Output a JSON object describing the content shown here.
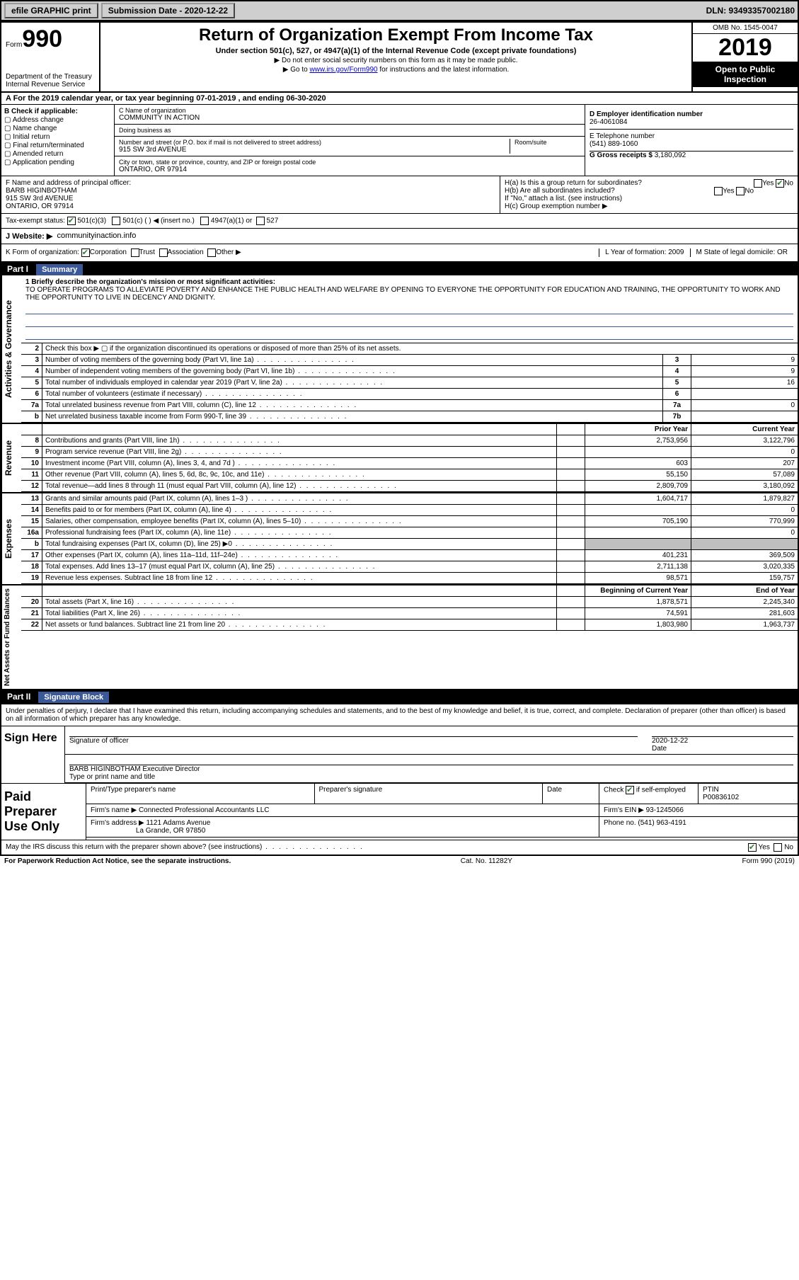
{
  "colors": {
    "link": "#0000cc",
    "check": "#2e7d32",
    "rule": "#3b5998",
    "gray": "#bfbfbf",
    "black": "#000000",
    "white": "#ffffff",
    "topbar": "#cfcfcf"
  },
  "topbar": {
    "efile": "efile GRAPHIC print",
    "submission_label": "Submission Date - 2020-12-22",
    "dln": "DLN: 93493357002180"
  },
  "header": {
    "form_word": "Form",
    "form_no": "990",
    "dept1": "Department of the Treasury",
    "dept2": "Internal Revenue Service",
    "title": "Return of Organization Exempt From Income Tax",
    "sub": "Under section 501(c), 527, or 4947(a)(1) of the Internal Revenue Code (except private foundations)",
    "note1": "▶ Do not enter social security numbers on this form as it may be made public.",
    "note2_pre": "▶ Go to ",
    "note2_link": "www.irs.gov/Form990",
    "note2_post": " for instructions and the latest information.",
    "omb": "OMB No. 1545-0047",
    "year": "2019",
    "inspection": "Open to Public Inspection"
  },
  "period": "A For the 2019 calendar year, or tax year beginning 07-01-2019    , and ending 06-30-2020",
  "boxB": {
    "label": "B Check if applicable:",
    "items": [
      "Address change",
      "Name change",
      "Initial return",
      "Final return/terminated",
      "Amended return",
      "Application pending"
    ]
  },
  "boxC": {
    "name_lbl": "C Name of organization",
    "name": "COMMUNITY IN ACTION",
    "dba_lbl": "Doing business as",
    "dba": "",
    "addr_lbl": "Number and street (or P.O. box if mail is not delivered to street address)",
    "room_lbl": "Room/suite",
    "addr": "915 SW 3rd AVENUE",
    "city_lbl": "City or town, state or province, country, and ZIP or foreign postal code",
    "city": "ONTARIO, OR  97914"
  },
  "boxD": {
    "lbl": "D Employer identification number",
    "val": "26-4061084"
  },
  "boxE": {
    "lbl": "E Telephone number",
    "val": "(541) 889-1060"
  },
  "boxG": {
    "lbl": "G Gross receipts $",
    "val": "3,180,092"
  },
  "boxF": {
    "lbl": "F  Name and address of principal officer:",
    "name": "BARB HIGINBOTHAM",
    "addr1": "915 SW 3rd AVENUE",
    "addr2": "ONTARIO, OR  97914"
  },
  "boxH": {
    "ha": "H(a)  Is this a group return for subordinates?",
    "ha_yes": "Yes",
    "ha_no": "No",
    "hb": "H(b)  Are all subordinates included?",
    "hb_yes": "Yes",
    "hb_no": "No",
    "hb_note": "If \"No,\" attach a list. (see instructions)",
    "hc": "H(c)  Group exemption number ▶"
  },
  "taxStatus": {
    "lbl": "Tax-exempt status:",
    "o1": "501(c)(3)",
    "o2": "501(c) (  ) ◀ (insert no.)",
    "o3": "4947(a)(1) or",
    "o4": "527"
  },
  "website": {
    "lbl": "J   Website: ▶",
    "val": "communityinaction.info"
  },
  "korg": {
    "k": "K Form of organization:",
    "corp": "Corporation",
    "trust": "Trust",
    "assoc": "Association",
    "other": "Other ▶",
    "l_lbl": "L Year of formation:",
    "l_val": "2009",
    "m_lbl": "M State of legal domicile:",
    "m_val": "OR"
  },
  "part1": {
    "label": "Part I",
    "title": "Summary"
  },
  "mission": {
    "q": "1   Briefly describe the organization's mission or most significant activities:",
    "text": "TO OPERATE PROGRAMS TO ALLEVIATE POVERTY AND ENHANCE THE PUBLIC HEALTH AND WELFARE BY OPENING TO EVERYONE THE OPPORTUNITY FOR EDUCATION AND TRAINING, THE OPPORTUNITY TO WORK AND THE OPPORTUNITY TO LIVE IN DECENCY AND DIGNITY."
  },
  "gov": {
    "section": "Activities & Governance",
    "l2": "Check this box ▶ ▢ if the organization discontinued its operations or disposed of more than 25% of its net assets.",
    "rows": [
      {
        "n": "3",
        "t": "Number of voting members of the governing body (Part VI, line 1a)",
        "b": "3",
        "v": "9"
      },
      {
        "n": "4",
        "t": "Number of independent voting members of the governing body (Part VI, line 1b)",
        "b": "4",
        "v": "9"
      },
      {
        "n": "5",
        "t": "Total number of individuals employed in calendar year 2019 (Part V, line 2a)",
        "b": "5",
        "v": "16"
      },
      {
        "n": "6",
        "t": "Total number of volunteers (estimate if necessary)",
        "b": "6",
        "v": ""
      },
      {
        "n": "7a",
        "t": "Total unrelated business revenue from Part VIII, column (C), line 12",
        "b": "7a",
        "v": "0"
      },
      {
        "n": "b",
        "t": "Net unrelated business taxable income from Form 990-T, line 39",
        "b": "7b",
        "v": ""
      }
    ]
  },
  "cols": {
    "py": "Prior Year",
    "cy": "Current Year"
  },
  "rev": {
    "section": "Revenue",
    "rows": [
      {
        "n": "8",
        "t": "Contributions and grants (Part VIII, line 1h)",
        "py": "2,753,956",
        "cy": "3,122,796"
      },
      {
        "n": "9",
        "t": "Program service revenue (Part VIII, line 2g)",
        "py": "",
        "cy": "0"
      },
      {
        "n": "10",
        "t": "Investment income (Part VIII, column (A), lines 3, 4, and 7d )",
        "py": "603",
        "cy": "207"
      },
      {
        "n": "11",
        "t": "Other revenue (Part VIII, column (A), lines 5, 6d, 8c, 9c, 10c, and 11e)",
        "py": "55,150",
        "cy": "57,089"
      },
      {
        "n": "12",
        "t": "Total revenue—add lines 8 through 11 (must equal Part VIII, column (A), line 12)",
        "py": "2,809,709",
        "cy": "3,180,092"
      }
    ]
  },
  "exp": {
    "section": "Expenses",
    "rows": [
      {
        "n": "13",
        "t": "Grants and similar amounts paid (Part IX, column (A), lines 1–3 )",
        "py": "1,604,717",
        "cy": "1,879,827"
      },
      {
        "n": "14",
        "t": "Benefits paid to or for members (Part IX, column (A), line 4)",
        "py": "",
        "cy": "0"
      },
      {
        "n": "15",
        "t": "Salaries, other compensation, employee benefits (Part IX, column (A), lines 5–10)",
        "py": "705,190",
        "cy": "770,999"
      },
      {
        "n": "16a",
        "t": "Professional fundraising fees (Part IX, column (A), line 11e)",
        "py": "",
        "cy": "0"
      },
      {
        "n": "b",
        "t": "Total fundraising expenses (Part IX, column (D), line 25) ▶0",
        "py": "GRAY",
        "cy": "GRAY"
      },
      {
        "n": "17",
        "t": "Other expenses (Part IX, column (A), lines 11a–11d, 11f–24e)",
        "py": "401,231",
        "cy": "369,509"
      },
      {
        "n": "18",
        "t": "Total expenses. Add lines 13–17 (must equal Part IX, column (A), line 25)",
        "py": "2,711,138",
        "cy": "3,020,335"
      },
      {
        "n": "19",
        "t": "Revenue less expenses. Subtract line 18 from line 12",
        "py": "98,571",
        "cy": "159,757"
      }
    ]
  },
  "net": {
    "section": "Net Assets or Fund Balances",
    "hdr_py": "Beginning of Current Year",
    "hdr_cy": "End of Year",
    "rows": [
      {
        "n": "20",
        "t": "Total assets (Part X, line 16)",
        "py": "1,878,571",
        "cy": "2,245,340"
      },
      {
        "n": "21",
        "t": "Total liabilities (Part X, line 26)",
        "py": "74,591",
        "cy": "281,603"
      },
      {
        "n": "22",
        "t": "Net assets or fund balances. Subtract line 21 from line 20",
        "py": "1,803,980",
        "cy": "1,963,737"
      }
    ]
  },
  "part2": {
    "label": "Part II",
    "title": "Signature Block"
  },
  "sig": {
    "decl": "Under penalties of perjury, I declare that I have examined this return, including accompanying schedules and statements, and to the best of my knowledge and belief, it is true, correct, and complete. Declaration of preparer (other than officer) is based on all information of which preparer has any knowledge.",
    "sign_here": "Sign Here",
    "sig_officer": "Signature of officer",
    "date_lbl": "Date",
    "date": "2020-12-22",
    "name": "BARB HIGINBOTHAM  Executive Director",
    "name_lbl": "Type or print name and title"
  },
  "prep": {
    "label": "Paid Preparer Use Only",
    "h1": "Print/Type preparer's name",
    "h2": "Preparer's signature",
    "h3": "Date",
    "chk": "Check",
    "chk2": "if self-employed",
    "ptin_lbl": "PTIN",
    "ptin": "P00836102",
    "firm_lbl": "Firm's name   ▶",
    "firm": "Connected Professional Accountants LLC",
    "ein_lbl": "Firm's EIN ▶",
    "ein": "93-1245066",
    "addr_lbl": "Firm's address ▶",
    "addr1": "1121 Adams Avenue",
    "addr2": "La Grande, OR  97850",
    "phone_lbl": "Phone no.",
    "phone": "(541) 963-4191",
    "discuss": "May the IRS discuss this return with the preparer shown above? (see instructions)",
    "yes": "Yes",
    "no": "No"
  },
  "footer": {
    "pra": "For Paperwork Reduction Act Notice, see the separate instructions.",
    "cat": "Cat. No. 11282Y",
    "form": "Form 990 (2019)"
  }
}
